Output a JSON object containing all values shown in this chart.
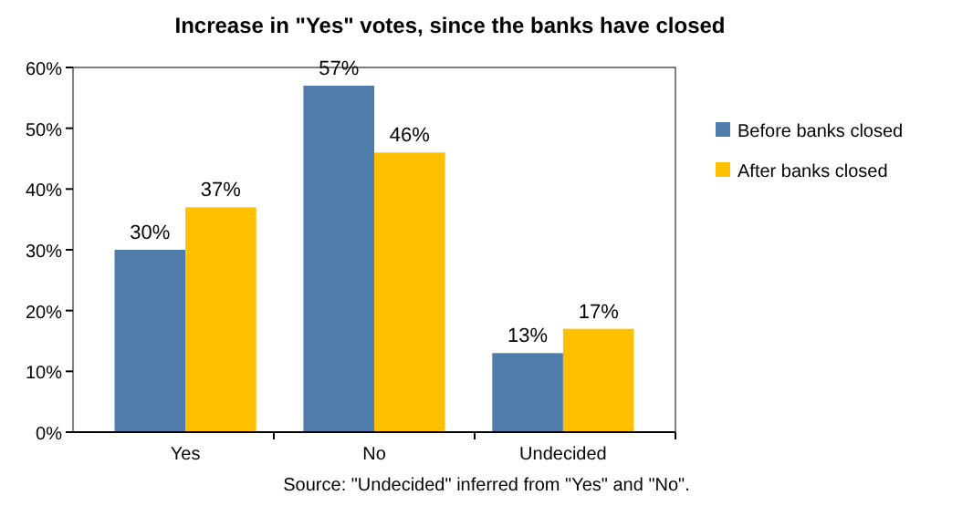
{
  "chart_data": {
    "type": "bar",
    "title": "Increase in \"Yes\" votes, since the banks have closed",
    "categories": [
      "Yes",
      "No",
      "Undecided"
    ],
    "series": [
      {
        "name": "Before banks closed",
        "color": "#4f7caa",
        "values": [
          30,
          57,
          13
        ],
        "value_labels": [
          "30%",
          "57%",
          "13%"
        ]
      },
      {
        "name": "After banks closed",
        "color": "#ffc000",
        "values": [
          37,
          46,
          17
        ],
        "value_labels": [
          "37%",
          "46%",
          "17%"
        ]
      }
    ],
    "ylim": [
      0,
      60
    ],
    "yticks": [
      {
        "value": 0,
        "label": "0%"
      },
      {
        "value": 10,
        "label": "10%"
      },
      {
        "value": 20,
        "label": "20%"
      },
      {
        "value": 30,
        "label": "30%"
      },
      {
        "value": 40,
        "label": "40%"
      },
      {
        "value": 50,
        "label": "50%"
      },
      {
        "value": 60,
        "label": "60%"
      }
    ],
    "legend": "right",
    "annotations": [
      "Source: \"Undecided\" inferred from \"Yes\" and \"No\"."
    ]
  }
}
